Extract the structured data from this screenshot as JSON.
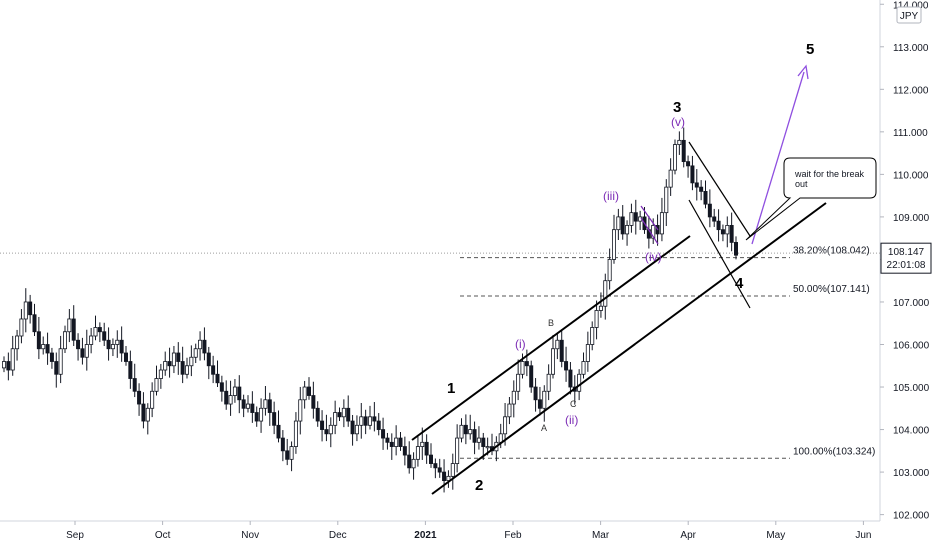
{
  "symbol_badge": "JPY",
  "price_badge": {
    "price": "108.147",
    "time": "22:01:08"
  },
  "note": {
    "line1": "wait for the break",
    "line2": "out"
  },
  "chart_data": {
    "type": "candlestick",
    "y_ticks": [
      "102.000",
      "103.000",
      "104.000",
      "105.000",
      "106.000",
      "107.000",
      "108.000",
      "109.000",
      "110.000",
      "111.000",
      "112.000",
      "113.000",
      "114.000"
    ],
    "ylim": [
      101.85,
      114.1
    ],
    "x_ticks": [
      {
        "label": "Sep",
        "month": 0
      },
      {
        "label": "Oct",
        "month": 1
      },
      {
        "label": "Nov",
        "month": 2
      },
      {
        "label": "Dec",
        "month": 3
      },
      {
        "label": "2021",
        "month": 4,
        "year": true
      },
      {
        "label": "Feb",
        "month": 5
      },
      {
        "label": "Mar",
        "month": 6
      },
      {
        "label": "Apr",
        "month": 7
      },
      {
        "label": "May",
        "month": 8
      },
      {
        "label": "Jun",
        "month": 9
      }
    ],
    "fib_levels": [
      {
        "label": "38.20%(108.042)",
        "value": 108.042
      },
      {
        "label": "50.00%(107.141)",
        "value": 107.141
      },
      {
        "label": "100.00%(103.324)",
        "value": 103.324
      }
    ],
    "current_price": 108.147,
    "closes": [
      105.6,
      105.4,
      105.9,
      106.2,
      106.6,
      107.0,
      106.7,
      106.3,
      105.9,
      106.0,
      105.8,
      105.6,
      105.3,
      105.9,
      106.3,
      106.6,
      106.1,
      105.9,
      105.7,
      106.0,
      106.2,
      106.4,
      106.3,
      106.1,
      105.9,
      106.0,
      106.1,
      105.8,
      105.6,
      105.2,
      104.9,
      104.6,
      104.2,
      104.5,
      104.9,
      105.2,
      105.4,
      105.6,
      105.5,
      105.8,
      105.6,
      105.3,
      105.5,
      105.7,
      105.9,
      106.1,
      105.8,
      105.5,
      105.3,
      105.1,
      104.9,
      104.6,
      104.8,
      105.0,
      104.7,
      104.5,
      104.6,
      104.4,
      104.2,
      104.5,
      104.7,
      104.4,
      104.1,
      103.8,
      103.5,
      103.3,
      103.6,
      104.2,
      104.7,
      105.0,
      104.8,
      104.5,
      104.2,
      104.0,
      103.9,
      104.1,
      104.4,
      104.3,
      104.5,
      104.2,
      103.9,
      104.1,
      104.3,
      104.1,
      104.3,
      104.2,
      104.0,
      103.8,
      103.7,
      103.6,
      103.8,
      103.6,
      103.4,
      103.1,
      103.3,
      103.6,
      103.7,
      103.4,
      103.2,
      103.1,
      103.0,
      102.8,
      102.9,
      103.2,
      103.8,
      104.1,
      103.9,
      104.0,
      103.7,
      103.8,
      103.6,
      103.6,
      103.5,
      103.7,
      103.9,
      104.3,
      104.6,
      104.9,
      105.3,
      105.6,
      105.5,
      105.0,
      104.7,
      104.5,
      104.9,
      105.3,
      105.9,
      106.1,
      105.6,
      105.4,
      105.0,
      104.9,
      105.3,
      105.6,
      106.0,
      106.4,
      106.8,
      106.9,
      107.5,
      108.0,
      108.7,
      109.0,
      108.6,
      108.8,
      109.1,
      108.9,
      109.0,
      108.7,
      108.5,
      108.8,
      108.6,
      109.1,
      109.7,
      110.1,
      110.7,
      110.8,
      110.3,
      110.2,
      109.8,
      109.7,
      109.6,
      109.3,
      109.0,
      108.9,
      108.7,
      108.6,
      108.8,
      108.4,
      108.1
    ],
    "wave_labels": [
      {
        "text": "1",
        "style": "primary"
      },
      {
        "text": "2",
        "style": "primary"
      },
      {
        "text": "3",
        "style": "primary"
      },
      {
        "text": "4",
        "style": "primary"
      },
      {
        "text": "5",
        "style": "primary"
      },
      {
        "text": "(i)",
        "style": "minor"
      },
      {
        "text": "(ii)",
        "style": "minor"
      },
      {
        "text": "(iii)",
        "style": "minor"
      },
      {
        "text": "(iv)",
        "style": "minor"
      },
      {
        "text": "(v)",
        "style": "minor"
      },
      {
        "text": "A",
        "style": "sub"
      },
      {
        "text": "B",
        "style": "sub"
      },
      {
        "text": "C",
        "style": "sub"
      }
    ],
    "colors": {
      "candle": "#131722",
      "minor_wave": "#7b2bb5",
      "forecast_arrow": "#8f4fe0",
      "grid_dash": "#555555",
      "axis_text": "#131722"
    }
  }
}
